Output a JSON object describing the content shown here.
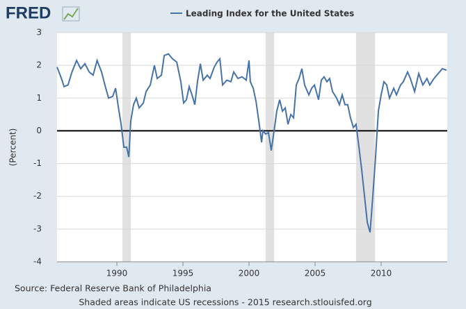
{
  "logo": "FRED",
  "chart_data": {
    "type": "line",
    "title": "Leading Index for the United States",
    "ylabel": "(Percent)",
    "source": "Source: Federal Reserve Bank of Philadelphia",
    "note": "Shaded areas indicate US recessions - 2015 research.stlouisfed.org",
    "xlim": [
      1985.47,
      2015.0
    ],
    "ylim": [
      -4,
      3
    ],
    "xticks": [
      1990,
      1995,
      2000,
      2005,
      2010
    ],
    "yticks": [
      -4,
      -3,
      -2,
      -1,
      0,
      1,
      2,
      3
    ],
    "grid": true,
    "zero_line": true,
    "recessions": [
      [
        1990.42,
        1991.05
      ],
      [
        2001.26,
        2001.9
      ],
      [
        2008.1,
        2009.53
      ]
    ],
    "x": [
      1985.47,
      1985.8,
      1986.0,
      1986.3,
      1986.6,
      1986.95,
      1987.26,
      1987.58,
      1987.9,
      1988.2,
      1988.5,
      1988.84,
      1989.16,
      1989.37,
      1989.68,
      1989.9,
      1990.1,
      1990.32,
      1990.53,
      1990.74,
      1990.9,
      1991.05,
      1991.26,
      1991.47,
      1991.68,
      1992.0,
      1992.21,
      1992.53,
      1992.84,
      1993.05,
      1993.37,
      1993.58,
      1993.9,
      1994.21,
      1994.53,
      1994.84,
      1995.05,
      1995.26,
      1995.47,
      1995.68,
      1995.9,
      1996.1,
      1996.32,
      1996.53,
      1996.84,
      1997.05,
      1997.37,
      1997.58,
      1997.79,
      1998.0,
      1998.32,
      1998.63,
      1998.84,
      1999.16,
      1999.47,
      1999.79,
      2000.0,
      2000.1,
      2000.32,
      2000.53,
      2000.74,
      2000.95,
      2001.05,
      2001.26,
      2001.47,
      2001.68,
      2001.9,
      2002.1,
      2002.32,
      2002.53,
      2002.74,
      2002.95,
      2003.16,
      2003.37,
      2003.58,
      2003.79,
      2004.0,
      2004.21,
      2004.53,
      2004.74,
      2004.95,
      2005.26,
      2005.47,
      2005.68,
      2005.9,
      2006.1,
      2006.32,
      2006.63,
      2006.84,
      2007.05,
      2007.26,
      2007.47,
      2007.68,
      2007.9,
      2008.1,
      2008.32,
      2008.53,
      2008.74,
      2008.95,
      2009.16,
      2009.37,
      2009.58,
      2009.79,
      2010.0,
      2010.21,
      2010.42,
      2010.63,
      2010.95,
      2011.16,
      2011.47,
      2011.68,
      2012.0,
      2012.21,
      2012.53,
      2012.84,
      2013.16,
      2013.47,
      2013.68,
      2014.0,
      2014.32,
      2014.63,
      2014.95
    ],
    "series": [
      {
        "name": "Leading Index for the United States",
        "color": "#4572a7",
        "values": [
          1.95,
          1.6,
          1.35,
          1.4,
          1.8,
          2.15,
          1.9,
          2.05,
          1.8,
          1.7,
          2.15,
          1.8,
          1.3,
          1.0,
          1.05,
          1.3,
          0.75,
          0.2,
          -0.5,
          -0.5,
          -0.8,
          0.3,
          0.8,
          1.0,
          0.7,
          0.85,
          1.2,
          1.4,
          2.0,
          1.6,
          1.7,
          2.3,
          2.35,
          2.2,
          2.1,
          1.5,
          0.85,
          0.95,
          1.35,
          1.1,
          0.8,
          1.5,
          2.05,
          1.55,
          1.7,
          1.6,
          1.95,
          2.1,
          2.2,
          1.4,
          1.55,
          1.5,
          1.8,
          1.6,
          1.65,
          1.55,
          2.15,
          1.5,
          1.3,
          0.9,
          0.3,
          -0.35,
          0.0,
          -0.1,
          -0.05,
          -0.6,
          0.0,
          0.6,
          0.95,
          0.6,
          0.7,
          0.2,
          0.5,
          0.4,
          1.4,
          1.6,
          1.9,
          1.4,
          1.1,
          1.3,
          1.4,
          0.95,
          1.55,
          1.65,
          1.5,
          1.6,
          1.2,
          1.0,
          0.8,
          1.1,
          0.8,
          0.8,
          0.4,
          0.1,
          0.2,
          -0.5,
          -1.2,
          -2.0,
          -2.8,
          -3.1,
          -2.0,
          -0.8,
          0.6,
          1.1,
          1.5,
          1.4,
          1.0,
          1.3,
          1.1,
          1.4,
          1.5,
          1.8,
          1.6,
          1.2,
          1.75,
          1.4,
          1.6,
          1.4,
          1.6,
          1.75,
          1.9,
          1.85
        ]
      }
    ]
  }
}
